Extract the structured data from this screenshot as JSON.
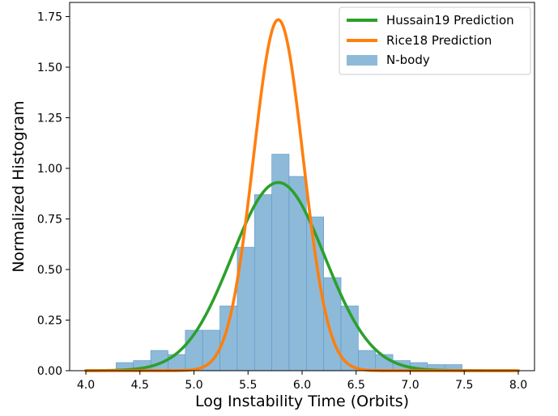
{
  "chart_data": {
    "type": "bar",
    "xlabel": "Log Instability Time (Orbits)",
    "ylabel": "Normalized Histogram",
    "xlim": [
      3.85,
      8.15
    ],
    "ylim": [
      0,
      1.82
    ],
    "x_ticks": [
      4.0,
      4.5,
      5.0,
      5.5,
      6.0,
      6.5,
      7.0,
      7.5,
      8.0
    ],
    "x_tick_labels": [
      "4.0",
      "4.5",
      "5.0",
      "5.5",
      "6.0",
      "6.5",
      "7.0",
      "7.5",
      "8.0"
    ],
    "y_ticks": [
      0.0,
      0.25,
      0.5,
      0.75,
      1.0,
      1.25,
      1.5,
      1.75
    ],
    "y_tick_labels": [
      "0.00",
      "0.25",
      "0.50",
      "0.75",
      "1.00",
      "1.25",
      "1.50",
      "1.75"
    ],
    "grid": false,
    "legend_position": "top-right",
    "legend": [
      "Hussain19 Prediction",
      "Rice18 Prediction",
      "N-body"
    ],
    "histogram": {
      "name": "N-body",
      "color": "#8ebad9",
      "edge_color": "#5a96c4",
      "bin_edges": [
        4.28,
        4.44,
        4.6,
        4.76,
        4.92,
        5.08,
        5.24,
        5.4,
        5.56,
        5.72,
        5.88,
        6.04,
        6.2,
        6.36,
        6.52,
        6.68,
        6.84,
        7.0,
        7.16,
        7.32,
        7.48
      ],
      "values": [
        0.04,
        0.05,
        0.1,
        0.08,
        0.2,
        0.2,
        0.32,
        0.61,
        0.87,
        1.07,
        0.96,
        0.76,
        0.46,
        0.32,
        0.1,
        0.08,
        0.05,
        0.04,
        0.03,
        0.03
      ]
    },
    "series": [
      {
        "name": "Hussain19 Prediction",
        "color": "#2ca02c",
        "type": "gaussian",
        "x_range": [
          4.0,
          8.0
        ],
        "mean": 5.78,
        "sigma": 0.43,
        "peak": 0.93
      },
      {
        "name": "Rice18 Prediction",
        "color": "#ff7f0e",
        "type": "gaussian",
        "x_range": [
          4.0,
          8.0
        ],
        "mean": 5.78,
        "sigma": 0.23,
        "peak": 1.735
      }
    ]
  }
}
